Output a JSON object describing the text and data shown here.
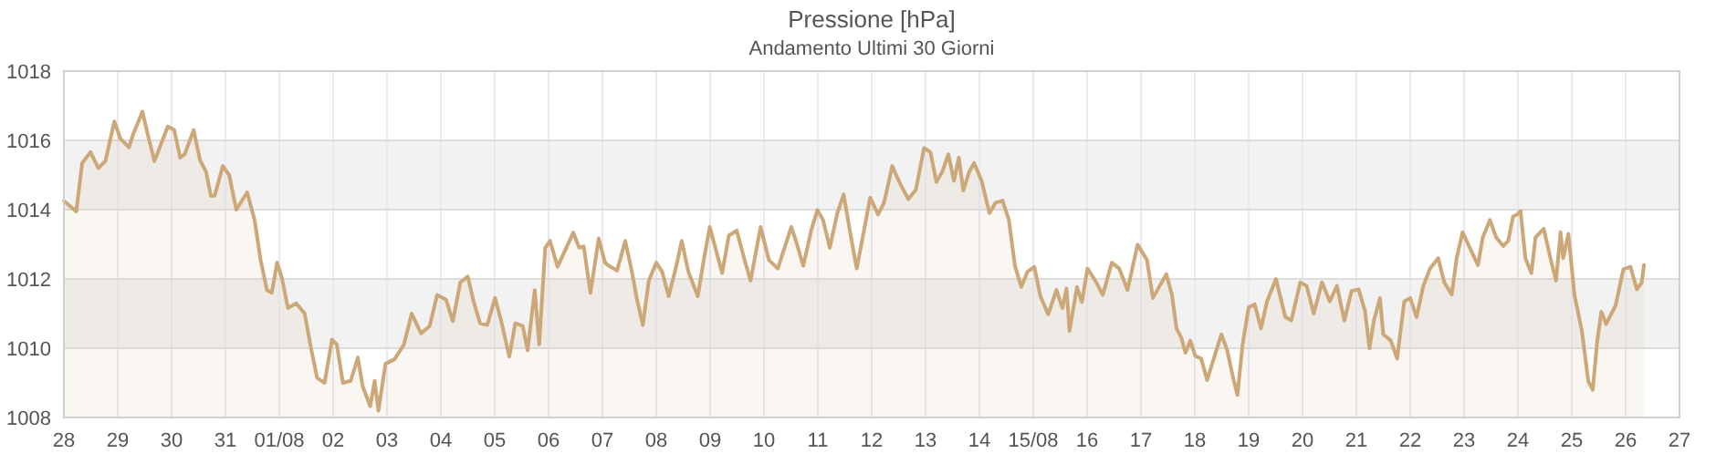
{
  "chart_data": {
    "type": "area",
    "title": "Pressione [hPa]",
    "subtitle": "Andamento Ultimi 30 Giorni",
    "xlim": [
      "--07-28",
      "--08-27"
    ],
    "ylim": [
      1008,
      1018
    ],
    "yticks": [
      1008,
      1010,
      1012,
      1014,
      1016,
      1018
    ],
    "xticks": [
      {
        "value": "--07-28",
        "label": "28"
      },
      {
        "value": "--07-29",
        "label": "29"
      },
      {
        "value": "--07-30",
        "label": "30"
      },
      {
        "value": "--07-31",
        "label": "31"
      },
      {
        "value": "--08-01",
        "label": "01/08"
      },
      {
        "value": "--08-02",
        "label": "02"
      },
      {
        "value": "--08-03",
        "label": "03"
      },
      {
        "value": "--08-04",
        "label": "04"
      },
      {
        "value": "--08-05",
        "label": "05"
      },
      {
        "value": "--08-06",
        "label": "06"
      },
      {
        "value": "--08-07",
        "label": "07"
      },
      {
        "value": "--08-08",
        "label": "08"
      },
      {
        "value": "--08-09",
        "label": "09"
      },
      {
        "value": "--08-10",
        "label": "10"
      },
      {
        "value": "--08-11",
        "label": "11"
      },
      {
        "value": "--08-12",
        "label": "12"
      },
      {
        "value": "--08-13",
        "label": "13"
      },
      {
        "value": "--08-14",
        "label": "14"
      },
      {
        "value": "--08-15",
        "label": "15/08"
      },
      {
        "value": "--08-16",
        "label": "16"
      },
      {
        "value": "--08-17",
        "label": "17"
      },
      {
        "value": "--08-18",
        "label": "18"
      },
      {
        "value": "--08-19",
        "label": "19"
      },
      {
        "value": "--08-20",
        "label": "20"
      },
      {
        "value": "--08-21",
        "label": "21"
      },
      {
        "value": "--08-22",
        "label": "22"
      },
      {
        "value": "--08-23",
        "label": "23"
      },
      {
        "value": "--08-24",
        "label": "24"
      },
      {
        "value": "--08-25",
        "label": "25"
      },
      {
        "value": "--08-26",
        "label": "26"
      },
      {
        "value": "--08-27",
        "label": "27"
      }
    ],
    "grid": true,
    "bands": [
      {
        "axis": "y",
        "from": 1010,
        "to": 1012,
        "color": "#f2f2f2"
      },
      {
        "axis": "y",
        "from": 1014,
        "to": 1016,
        "color": "#f2f2f2"
      }
    ],
    "series": [
      {
        "color": "#cca878",
        "x": [
          "--07-28T00:00",
          "--07-28T05:30",
          "--07-28T08:10",
          "--07-28T11:50",
          "--07-28T15:20",
          "--07-28T18:30",
          "--07-28T22:30",
          "--07-29T01:10",
          "--07-29T05:00",
          "--07-29T07:00",
          "--07-29T11:00",
          "--07-29T13:50",
          "--07-29T16:20",
          "--07-29T22:20",
          "--07-30T01:10",
          "--07-30T03:50",
          "--07-30T05:50",
          "--07-30T09:50",
          "--07-30T12:40",
          "--07-30T15:20",
          "--07-30T17:30",
          "--07-30T19:10",
          "--07-30T22:50",
          "--07-31T01:40",
          "--07-31T04:50",
          "--07-31T09:40",
          "--07-31T13:00",
          "--07-31T15:40",
          "--07-31T18:30",
          "--07-31T20:40",
          "--07-31T23:00",
          "--08-01T01:10",
          "--08-01T03:50",
          "--08-01T07:30",
          "--08-01T11:20",
          "--08-01T13:50",
          "--08-01T16:50",
          "--08-01T20:10",
          "--08-01T23:30",
          "--08-02T01:40",
          "--08-02T04:20",
          "--08-02T07:50",
          "--08-02T11:00",
          "--08-02T13:10",
          "--08-02T16:30",
          "--08-02T18:30",
          "--08-02T20:10",
          "--08-02T23:20",
          "--08-03T03:20",
          "--08-03T07:30",
          "--08-03T11:00",
          "--08-03T15:10",
          "--08-03T19:00",
          "--08-03T22:20",
          "--08-04T02:20",
          "--08-04T05:20",
          "--08-04T08:40",
          "--08-04T12:00",
          "--08-04T14:40",
          "--08-04T17:30",
          "--08-04T20:40",
          "--08-05T00:10",
          "--08-05T02:50",
          "--08-05T06:30",
          "--08-05T09:10",
          "--08-05T12:30",
          "--08-05T14:40",
          "--08-05T17:50",
          "--08-05T19:50",
          "--08-05T22:30",
          "--08-06T00:40",
          "--08-06T04:00",
          "--08-06T07:20",
          "--08-06T11:00",
          "--08-06T13:40",
          "--08-06T15:40",
          "--08-06T18:40",
          "--08-06T22:20",
          "--08-07T01:10",
          "--08-07T02:50",
          "--08-07T06:30",
          "--08-07T10:10",
          "--08-07T13:10",
          "--08-07T15:20",
          "--08-07T18:00",
          "--08-07T20:40",
          "--08-08T00:00",
          "--08-08T02:40",
          "--08-08T05:30",
          "--08-08T08:40",
          "--08-08T11:20",
          "--08-08T14:20",
          "--08-08T18:30",
          "--08-08T21:10",
          "--08-08T23:50",
          "--08-09T02:20",
          "--08-09T05:20",
          "--08-09T08:20",
          "--08-09T11:50",
          "--08-09T15:20",
          "--08-09T18:00",
          "--08-09T22:30",
          "--08-10T02:10",
          "--08-10T06:10",
          "--08-10T12:10",
          "--08-10T14:20",
          "--08-10T17:30",
          "--08-10T21:10",
          "--08-10T23:50",
          "--08-11T02:20",
          "--08-11T05:20",
          "--08-11T08:40",
          "--08-11T11:30",
          "--08-11T14:40",
          "--08-11T17:20",
          "--08-11T20:40",
          "--08-11T23:20",
          "--08-12T02:50",
          "--08-12T05:30",
          "--08-12T09:10",
          "--08-12T12:10",
          "--08-12T16:20",
          "--08-12T19:40",
          "--08-12T23:20",
          "--08-13T02:10",
          "--08-13T04:50",
          "--08-13T07:30",
          "--08-13T10:10",
          "--08-13T12:40",
          "--08-13T14:50",
          "--08-13T16:50",
          "--08-13T19:30",
          "--08-13T21:40",
          "--08-14T01:00",
          "--08-14T04:30",
          "--08-14T07:10",
          "--08-14T10:20",
          "--08-14T13:10",
          "--08-14T15:50",
          "--08-14T18:40",
          "--08-14T21:20",
          "--08-15T00:30",
          "--08-15T03:10",
          "--08-15T06:40",
          "--08-15T10:20",
          "--08-15T13:00",
          "--08-15T14:50",
          "--08-15T16:10",
          "--08-15T19:30",
          "--08-15T21:40",
          "--08-16T00:10",
          "--08-16T03:40",
          "--08-16T07:00",
          "--08-16T11:00",
          "--08-16T14:20",
          "--08-16T18:00",
          "--08-16T22:30",
          "--08-17T02:40",
          "--08-17T05:20",
          "--08-17T08:20",
          "--08-17T11:20",
          "--08-17T13:50",
          "--08-17T15:50",
          "--08-17T18:00",
          "--08-17T19:50",
          "--08-17T22:00",
          "--08-18T00:10",
          "--08-18T02:50",
          "--08-18T05:30",
          "--08-18T08:50",
          "--08-18T11:50",
          "--08-18T14:20",
          "--08-18T17:20",
          "--08-18T19:00",
          "--08-18T21:20",
          "--08-19T00:00",
          "--08-19T02:40",
          "--08-19T05:30",
          "--08-19T08:10",
          "--08-19T12:10",
          "--08-19T16:20",
          "--08-19T19:00",
          "--08-19T23:00",
          "--08-20T01:50",
          "--08-20T05:00",
          "--08-20T08:40",
          "--08-20T12:10",
          "--08-20T15:20",
          "--08-20T18:40",
          "--08-20T21:50",
          "--08-21T01:00",
          "--08-21T03:50",
          "--08-21T05:50",
          "--08-21T07:50",
          "--08-21T10:30",
          "--08-21T12:00",
          "--08-21T15:20",
          "--08-21T18:10",
          "--08-21T21:20",
          "--08-22T00:00",
          "--08-22T02:50",
          "--08-22T05:50",
          "--08-22T08:50",
          "--08-22T12:30",
          "--08-22T15:10",
          "--08-22T18:30",
          "--08-22T20:40",
          "--08-22T23:20",
          "--08-23T02:10",
          "--08-23T06:10",
          "--08-23T08:20",
          "--08-23T11:30",
          "--08-23T14:20",
          "--08-23T17:30",
          "--08-23T19:40",
          "--08-23T21:50",
          "--08-23T23:50",
          "--08-24T01:10",
          "--08-24T03:20",
          "--08-24T06:00",
          "--08-24T07:50",
          "--08-24T11:30",
          "--08-24T14:50",
          "--08-24T17:00",
          "--08-24T19:00",
          "--08-24T20:10",
          "--08-24T22:30",
          "--08-25T01:10",
          "--08-25T04:30",
          "--08-25T07:20",
          "--08-25T09:20",
          "--08-25T11:20",
          "--08-25T13:10",
          "--08-25T15:20",
          "--08-25T19:30",
          "--08-25T23:00",
          "--08-26T02:10",
          "--08-26T05:00",
          "--08-26T07:10",
          "--08-26T08:10"
        ],
        "values": [
          1014.25,
          1013.95,
          1015.35,
          1015.66,
          1015.2,
          1015.4,
          1016.55,
          1016.05,
          1015.8,
          1016.2,
          1016.83,
          1016.05,
          1015.4,
          1016.4,
          1016.3,
          1015.5,
          1015.6,
          1016.3,
          1015.43,
          1015.1,
          1014.4,
          1014.4,
          1015.26,
          1015.0,
          1014.0,
          1014.5,
          1013.7,
          1012.55,
          1011.68,
          1011.6,
          1012.47,
          1012.03,
          1011.16,
          1011.3,
          1011.0,
          1010.1,
          1009.15,
          1009.0,
          1010.25,
          1010.1,
          1009.0,
          1009.06,
          1009.73,
          1008.9,
          1008.33,
          1009.06,
          1008.2,
          1009.55,
          1009.68,
          1010.1,
          1011.0,
          1010.43,
          1010.64,
          1011.54,
          1011.4,
          1010.78,
          1011.9,
          1012.07,
          1011.33,
          1010.72,
          1010.67,
          1011.45,
          1010.8,
          1009.76,
          1010.72,
          1010.64,
          1009.94,
          1011.68,
          1010.11,
          1012.9,
          1013.1,
          1012.35,
          1012.82,
          1013.34,
          1012.9,
          1012.94,
          1011.6,
          1013.17,
          1012.47,
          1012.38,
          1012.24,
          1013.1,
          1012.2,
          1011.43,
          1010.67,
          1011.95,
          1012.47,
          1012.2,
          1011.5,
          1012.3,
          1013.1,
          1012.2,
          1011.5,
          1012.55,
          1013.5,
          1012.9,
          1012.17,
          1013.25,
          1013.4,
          1012.55,
          1011.95,
          1013.5,
          1012.55,
          1012.3,
          1013.5,
          1013.08,
          1012.38,
          1013.43,
          1013.99,
          1013.7,
          1012.9,
          1013.9,
          1014.44,
          1013.25,
          1012.3,
          1013.43,
          1014.35,
          1013.86,
          1014.2,
          1015.26,
          1014.82,
          1014.3,
          1014.57,
          1015.78,
          1015.66,
          1014.8,
          1015.1,
          1015.6,
          1014.83,
          1015.5,
          1014.55,
          1015.1,
          1015.35,
          1014.83,
          1013.9,
          1014.2,
          1014.26,
          1013.7,
          1012.38,
          1011.77,
          1012.2,
          1012.35,
          1011.5,
          1010.98,
          1011.68,
          1011.16,
          1011.72,
          1010.5,
          1011.77,
          1011.33,
          1012.3,
          1011.95,
          1011.54,
          1012.47,
          1012.3,
          1011.68,
          1012.99,
          1012.55,
          1011.45,
          1011.8,
          1012.14,
          1011.53,
          1010.57,
          1010.3,
          1009.87,
          1010.22,
          1009.78,
          1009.7,
          1009.08,
          1009.78,
          1010.4,
          1009.96,
          1009.08,
          1008.65,
          1010.13,
          1011.18,
          1011.27,
          1010.57,
          1011.35,
          1012.0,
          1010.9,
          1010.8,
          1011.9,
          1011.8,
          1011.0,
          1011.9,
          1011.35,
          1011.8,
          1010.8,
          1011.65,
          1011.7,
          1011.08,
          1010.0,
          1010.8,
          1011.45,
          1010.4,
          1010.22,
          1009.7,
          1011.35,
          1011.45,
          1010.9,
          1011.8,
          1012.3,
          1012.6,
          1011.9,
          1011.55,
          1012.6,
          1013.35,
          1012.95,
          1012.4,
          1013.2,
          1013.7,
          1013.2,
          1012.95,
          1013.1,
          1013.8,
          1013.87,
          1013.96,
          1012.6,
          1012.17,
          1013.2,
          1013.45,
          1012.5,
          1011.95,
          1013.35,
          1012.6,
          1013.3,
          1011.55,
          1010.5,
          1009.05,
          1008.8,
          1010.2,
          1011.05,
          1010.7,
          1011.23,
          1012.28,
          1012.35,
          1011.7,
          1011.9,
          1012.4
        ]
      }
    ]
  }
}
